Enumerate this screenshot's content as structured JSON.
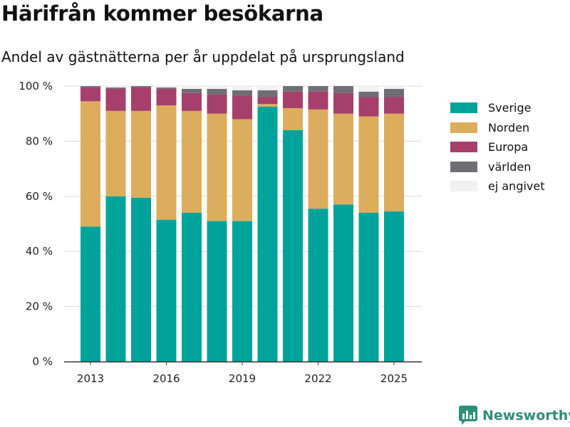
{
  "header": {
    "title": "Härifrån kommer besökarna",
    "subtitle": "Andel av gästnätterna per år uppdelat på ursprungsland"
  },
  "brand": {
    "name": "Newsworthy",
    "color": "#2e8f78",
    "icon": "chart-bubble-icon"
  },
  "chart_data": {
    "type": "bar",
    "stacked": true,
    "title": "",
    "xlabel": "",
    "ylabel": "",
    "ylim": [
      0,
      100
    ],
    "y_ticks": [
      "0 %",
      "20 %",
      "40 %",
      "60 %",
      "80 %",
      "100 %"
    ],
    "x_tick_labels": [
      "2013",
      "2016",
      "2019",
      "2022",
      "2025"
    ],
    "grid": "horizontal",
    "legend_position": "right",
    "categories": [
      "2013",
      "2014",
      "2015",
      "2016",
      "2017",
      "2018",
      "2019",
      "2020",
      "2021",
      "2022",
      "2023",
      "2024",
      "2025"
    ],
    "series": [
      {
        "name": "Sverige",
        "color": "#00a39a",
        "values": [
          49,
          60,
          59.5,
          51.5,
          54,
          51,
          51,
          92.5,
          84,
          55.5,
          57,
          54,
          54.5
        ]
      },
      {
        "name": "Norden",
        "color": "#dbad5d",
        "values": [
          45.5,
          31,
          31.5,
          41.5,
          37,
          39,
          37,
          1,
          8,
          36,
          33,
          35,
          35.5
        ]
      },
      {
        "name": "Europa",
        "color": "#a63f6b",
        "values": [
          5,
          8,
          8.5,
          6,
          6.5,
          7,
          8.5,
          2.5,
          6,
          6.5,
          7.5,
          7,
          6
        ]
      },
      {
        "name": "världen",
        "color": "#6e6e74",
        "values": [
          0.5,
          0.5,
          0.5,
          0.5,
          1.5,
          2,
          2,
          2.5,
          2,
          2,
          2.5,
          2,
          3
        ]
      },
      {
        "name": "ej angivet",
        "color": "#f1f1f1",
        "values": [
          0,
          0.5,
          0,
          0.5,
          1,
          1,
          1.5,
          1.5,
          0,
          0,
          0,
          2,
          1
        ]
      }
    ]
  }
}
